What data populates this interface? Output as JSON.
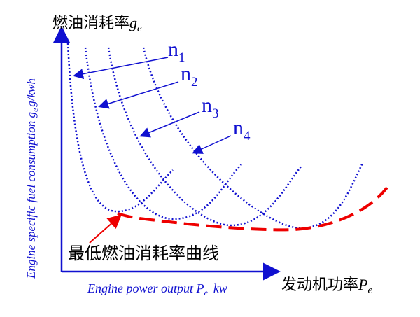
{
  "y_axis": {
    "title": {
      "text": "燃油消耗率",
      "symbol": "g",
      "subscript": "e"
    },
    "description": {
      "text": "Engine specific fuel consumption g",
      "subscript": "e",
      "unit": "g/kwh"
    }
  },
  "x_axis": {
    "title": {
      "text": "发动机功率",
      "symbol": "P",
      "subscript": "e"
    },
    "description": {
      "text": "Engine power output P",
      "subscript": "e",
      "unit": "kw"
    }
  },
  "curves": [
    {
      "label": "n",
      "subscript": "1"
    },
    {
      "label": "n",
      "subscript": "2"
    },
    {
      "label": "n",
      "subscript": "3"
    },
    {
      "label": "n",
      "subscript": "4"
    }
  ],
  "min_curve_label": "最低燃油消耗率曲线"
}
